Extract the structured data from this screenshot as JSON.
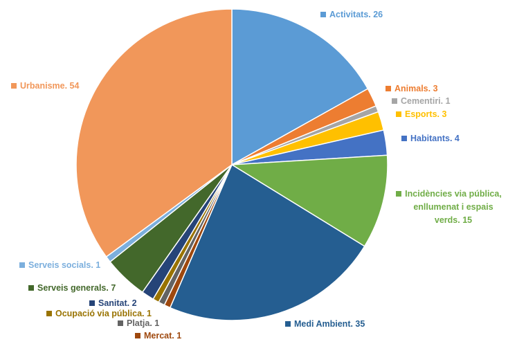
{
  "chart_data": {
    "type": "pie",
    "title": "",
    "slices": [
      {
        "label": "Activitats. 26",
        "category": "Activitats",
        "value": 26,
        "color": "#5B9BD5"
      },
      {
        "label": "Animals. 3",
        "category": "Animals",
        "value": 3,
        "color": "#ED7D31"
      },
      {
        "label": "Cementiri. 1",
        "category": "Cementiri",
        "value": 1,
        "color": "#A5A5A5"
      },
      {
        "label": "Esports. 3",
        "category": "Esports",
        "value": 3,
        "color": "#FFC000"
      },
      {
        "label": "Habitants. 4",
        "category": "Habitants",
        "value": 4,
        "color": "#4472C4"
      },
      {
        "label": "Incidències via pública, enllumenat i espais verds. 15",
        "lines": [
          "Incidències via pública,",
          "enllumenat i espais",
          "verds. 15"
        ],
        "category": "Incidències via pública, enllumenat i espais verds",
        "value": 15,
        "color": "#70AD47"
      },
      {
        "label": "Medi Ambient. 35",
        "category": "Medi Ambient",
        "value": 35,
        "color": "#255E91"
      },
      {
        "label": "Mercat. 1",
        "category": "Mercat",
        "value": 1,
        "color": "#9E480E"
      },
      {
        "label": "Platja. 1",
        "category": "Platja",
        "value": 1,
        "color": "#636363"
      },
      {
        "label": "Ocupació via pública. 1",
        "category": "Ocupació via pública",
        "value": 1,
        "color": "#997300"
      },
      {
        "label": "Sanitat. 2",
        "category": "Sanitat",
        "value": 2,
        "color": "#264478"
      },
      {
        "label": "Serveis generals. 7",
        "category": "Serveis generals",
        "value": 7,
        "color": "#43682B"
      },
      {
        "label": "Serveis socials. 1",
        "category": "Serveis socials",
        "value": 1,
        "color": "#7CAFDD"
      },
      {
        "label": "Urbanisme. 54",
        "category": "Urbanisme",
        "value": 54,
        "color": "#F1975A"
      }
    ],
    "start_angle": "12 o'clock",
    "direction": "clockwise",
    "slice_border_color": "#FFFFFF",
    "data_labels": "category and value, in slice color, outside the pie",
    "legend": "none"
  }
}
